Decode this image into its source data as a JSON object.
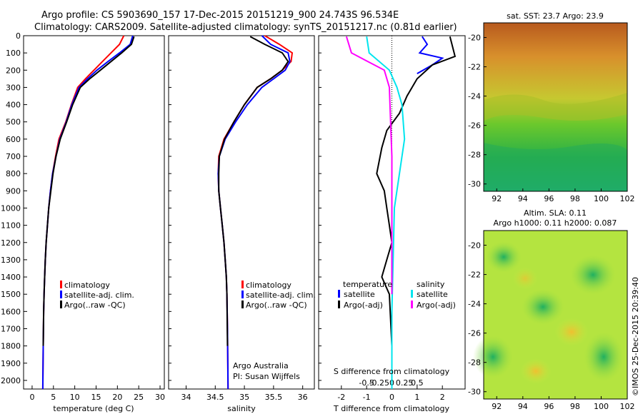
{
  "header": {
    "line1": "Argo profile: CS 5903690_157 17-Dec-2015 20151219_900 24.743S 96.534E",
    "line2": "Climatology: CARS2009. Satellite-adjusted climatology: synTS_20151217.nc (0.81d earlier)"
  },
  "colors": {
    "climatology": "#ff0000",
    "satellite": "#0000ff",
    "argo": "#000000",
    "sat_salinity": "#00e5ee",
    "argo_salinity": "#ff00ff"
  },
  "chart_data": [
    {
      "type": "line",
      "name": "temperature-profile",
      "xlabel": "temperature (deg C)",
      "ylabel": "",
      "xlim": [
        -2,
        31
      ],
      "ylim": [
        0,
        2050
      ],
      "y_inverted": true,
      "xticks": [
        0,
        5,
        10,
        15,
        20,
        25,
        30
      ],
      "yticks": [
        0,
        100,
        200,
        300,
        400,
        500,
        600,
        700,
        800,
        900,
        1000,
        1100,
        1200,
        1300,
        1400,
        1500,
        1600,
        1700,
        1800,
        1900,
        2000
      ],
      "legend": [
        "climatology",
        "satellite-adj. clim.",
        "Argo(..raw -QC)"
      ],
      "series": [
        {
          "name": "climatology",
          "color": "#ff0000",
          "x": [
            21.5,
            20.5,
            18.5,
            16.5,
            14.5,
            12.5,
            10.7,
            9.2,
            7.9,
            6.3,
            5.5,
            4.8,
            4.3,
            3.9,
            3.6,
            3.3,
            3.1,
            2.95,
            2.8,
            2.7,
            2.6,
            2.5
          ],
          "y": [
            0,
            50,
            100,
            150,
            200,
            250,
            300,
            400,
            500,
            600,
            700,
            800,
            900,
            1000,
            1100,
            1200,
            1300,
            1400,
            1500,
            1600,
            1800,
            2050
          ]
        },
        {
          "name": "satellite-adj. clim.",
          "color": "#0000ff",
          "x": [
            23.6,
            23.0,
            20.5,
            17.8,
            15.2,
            13.0,
            11.0,
            9.3,
            8.0,
            6.5,
            5.6,
            4.8,
            4.3,
            3.9,
            3.6,
            3.3,
            3.1,
            2.95,
            2.8,
            2.7,
            2.6,
            2.5
          ],
          "y": [
            0,
            50,
            100,
            150,
            200,
            250,
            300,
            400,
            500,
            600,
            700,
            800,
            900,
            1000,
            1100,
            1200,
            1300,
            1400,
            1500,
            1600,
            1800,
            2050
          ]
        },
        {
          "name": "Argo(..raw -QC)",
          "color": "#000000",
          "x": [
            23.9,
            23.3,
            21.0,
            18.5,
            16.0,
            13.5,
            11.3,
            9.5,
            8.1,
            6.6,
            5.6,
            4.9,
            4.4,
            3.9,
            3.6,
            3.3,
            3.1,
            2.95,
            2.8,
            2.7,
            2.6
          ],
          "y": [
            5,
            50,
            100,
            150,
            200,
            250,
            300,
            400,
            500,
            600,
            700,
            800,
            900,
            1000,
            1100,
            1200,
            1300,
            1400,
            1500,
            1600,
            1800
          ]
        }
      ]
    },
    {
      "type": "line",
      "name": "salinity-profile",
      "xlabel": "salinity",
      "xlim": [
        33.7,
        36.2
      ],
      "ylim": [
        0,
        2050
      ],
      "y_inverted": true,
      "xticks": [
        34,
        34.5,
        35,
        35.5,
        36
      ],
      "legend": [
        "climatology",
        "satellite-adj. clim.",
        "Argo(..raw -QC)"
      ],
      "annotation": [
        "Argo Australia",
        "PI: Susan Wijffels"
      ],
      "series": [
        {
          "name": "climatology",
          "color": "#ff0000",
          "x": [
            35.35,
            35.6,
            35.82,
            35.8,
            35.65,
            35.45,
            35.22,
            35.0,
            34.82,
            34.65,
            34.56,
            34.55,
            34.56,
            34.59,
            34.62,
            34.65,
            34.67,
            34.69,
            34.7,
            34.71,
            34.72
          ],
          "y": [
            0,
            50,
            100,
            150,
            200,
            250,
            300,
            400,
            500,
            600,
            700,
            800,
            900,
            1000,
            1100,
            1200,
            1300,
            1400,
            1500,
            1700,
            2050
          ]
        },
        {
          "name": "satellite-adj. clim.",
          "color": "#0000ff",
          "x": [
            35.3,
            35.45,
            35.75,
            35.78,
            35.7,
            35.5,
            35.3,
            35.05,
            34.85,
            34.67,
            34.57,
            34.55,
            34.56,
            34.59,
            34.62,
            34.65,
            34.67,
            34.69,
            34.7,
            34.71,
            34.72
          ],
          "y": [
            0,
            50,
            100,
            150,
            200,
            250,
            300,
            400,
            500,
            600,
            700,
            800,
            900,
            1000,
            1100,
            1200,
            1300,
            1400,
            1500,
            1700,
            2050
          ]
        },
        {
          "name": "Argo(..raw -QC)",
          "color": "#000000",
          "x": [
            35.1,
            35.35,
            35.65,
            35.75,
            35.65,
            35.45,
            35.22,
            35.0,
            34.82,
            34.66,
            34.57,
            34.56,
            34.56,
            34.59,
            34.62,
            34.65,
            34.67,
            34.69,
            34.7,
            34.71
          ],
          "y": [
            5,
            50,
            100,
            150,
            200,
            250,
            300,
            400,
            500,
            600,
            700,
            800,
            900,
            1000,
            1100,
            1200,
            1300,
            1400,
            1500,
            1800
          ]
        }
      ]
    },
    {
      "type": "line",
      "name": "difference-profile",
      "xlabel": "T difference from climatology",
      "xlabel_top": "S difference from climatology",
      "xlim": [
        -2.9,
        2.9
      ],
      "ylim": [
        0,
        2050
      ],
      "y_inverted": true,
      "xticks": [
        -2,
        -1,
        0,
        1,
        2
      ],
      "xticks_s": [
        "-0.5",
        "-0.25",
        "0",
        "0.25",
        "0.5"
      ],
      "legend_temperature": [
        "temperature",
        "satellite",
        "Argo(-adj)"
      ],
      "legend_salinity": [
        "salinity",
        "satellite",
        "Argo(-adj)"
      ],
      "series": [
        {
          "name": "T satellite",
          "color": "#0000ff",
          "x": [
            1.2,
            1.4,
            1.1,
            2.0,
            1.6,
            1.0
          ],
          "y": [
            5,
            50,
            100,
            130,
            170,
            220
          ]
        },
        {
          "name": "T Argo(-adj)",
          "color": "#000000",
          "x": [
            2.3,
            2.5,
            1.6,
            1.0,
            0.6,
            0.3,
            -0.2,
            -0.4,
            -0.6,
            -0.3,
            -0.2,
            -0.1,
            0.0,
            -0.2,
            -0.4,
            -0.1,
            0.0,
            0.0
          ],
          "y": [
            5,
            120,
            170,
            250,
            350,
            450,
            550,
            650,
            800,
            900,
            1000,
            1100,
            1200,
            1300,
            1400,
            1500,
            1800,
            2050
          ]
        },
        {
          "name": "S satellite",
          "color": "#00e5ee",
          "x": [
            -1.0,
            -0.9,
            -0.1,
            0.2,
            0.4,
            0.5,
            0.3,
            0.1,
            0.0,
            0.0
          ],
          "y": [
            5,
            100,
            200,
            300,
            400,
            600,
            800,
            1000,
            1600,
            2050
          ]
        },
        {
          "name": "S Argo(-adj)",
          "color": "#ff00ff",
          "x": [
            -1.8,
            -1.6,
            -0.3,
            -0.1,
            -0.05,
            0.0,
            0.0
          ],
          "y": [
            5,
            100,
            200,
            300,
            500,
            700,
            1500
          ]
        }
      ]
    },
    {
      "type": "heatmap",
      "name": "sst-map",
      "title": "sat. SST: 23.7 Argo: 23.9",
      "xticks": [
        92,
        94,
        96,
        98,
        100,
        102
      ],
      "yticks": [
        -20,
        -22,
        -24,
        -26,
        -28,
        -30
      ]
    },
    {
      "type": "heatmap",
      "name": "sla-map",
      "title": "Altim. SLA: 0.11",
      "subtitle": "Argo h1000: 0.11 h2000: 0.087",
      "xticks": [
        92,
        94,
        96,
        98,
        100,
        102
      ],
      "yticks": [
        -20,
        -22,
        -24,
        -26,
        -28,
        -30
      ],
      "watermark": "©IMOS 25-Dec-2015 20:39:40"
    }
  ]
}
